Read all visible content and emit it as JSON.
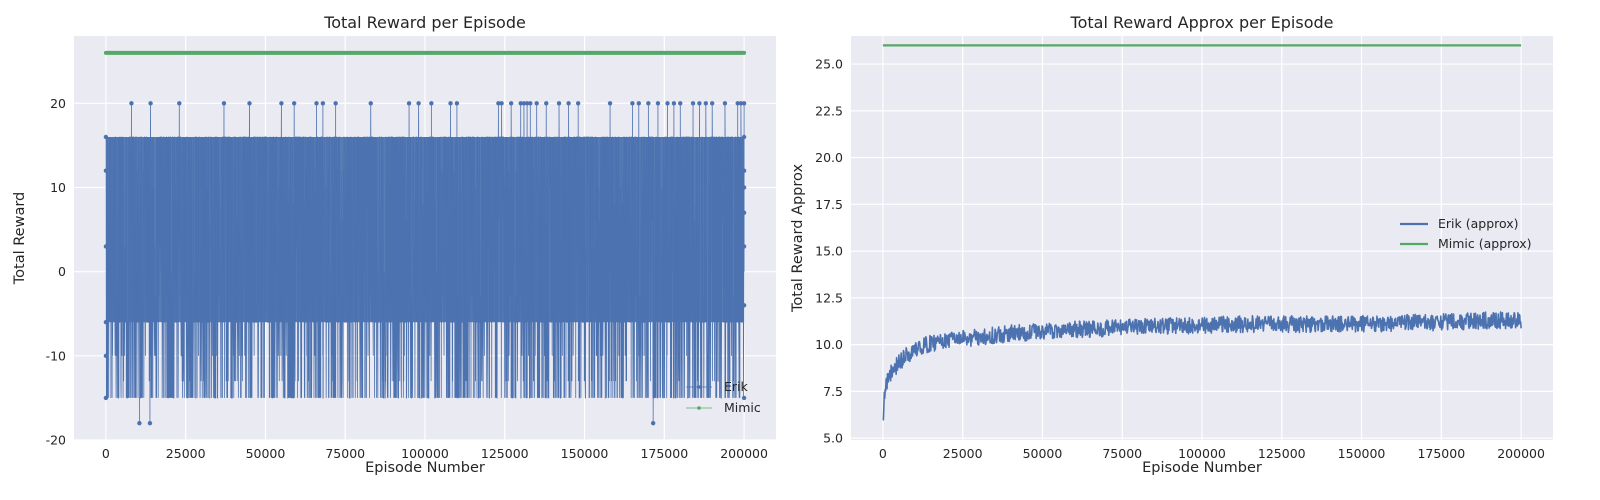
{
  "chart_data": [
    {
      "type": "line",
      "title": "Total Reward per Episode",
      "xlabel": "Episode Number",
      "ylabel": "Total Reward",
      "xlim": [
        -10000,
        210000
      ],
      "ylim": [
        -20,
        28
      ],
      "xticks": [
        0,
        25000,
        50000,
        75000,
        100000,
        125000,
        150000,
        175000,
        200000
      ],
      "yticks": [
        -20,
        -10,
        0,
        10,
        20
      ],
      "grid": true,
      "legend": "lower-right",
      "series": [
        {
          "name": "Erik",
          "color": "#4c72b0",
          "marker": "point",
          "levels": [
            16,
            12,
            10,
            8,
            6,
            3,
            0,
            -3,
            -6,
            -10,
            -13,
            -15
          ],
          "rare_values": [
            {
              "value": 20,
              "x": [
                8000,
                14000,
                23000,
                37000,
                45000,
                55000,
                59000,
                66000,
                68000,
                72000,
                83000,
                95000,
                98000,
                102000,
                108000,
                110000,
                123000,
                124000,
                127000,
                130000,
                131000,
                132000,
                133000,
                135000,
                138000,
                142000,
                145000,
                148000,
                158000,
                165000,
                167000,
                170000,
                173000,
                176000,
                178000,
                180000,
                184000,
                186000,
                188000,
                190000,
                194000,
                198000,
                199000,
                200000
              ]
            },
            {
              "value": -18,
              "x": [
                10500,
                13800,
                171500
              ]
            }
          ],
          "x_range": [
            0,
            200000
          ]
        },
        {
          "name": "Mimic",
          "color": "#55a868",
          "marker": "point",
          "constant_value": 26,
          "x_range": [
            0,
            200000
          ]
        }
      ]
    },
    {
      "type": "line",
      "title": "Total Reward Approx per Episode",
      "xlabel": "Episode Number",
      "ylabel": "Total Reward Approx",
      "xlim": [
        -10000,
        210000
      ],
      "ylim": [
        4.9,
        26.5
      ],
      "xticks": [
        0,
        25000,
        50000,
        75000,
        100000,
        125000,
        150000,
        175000,
        200000
      ],
      "yticks": [
        5.0,
        7.5,
        10.0,
        12.5,
        15.0,
        17.5,
        20.0,
        22.5,
        25.0
      ],
      "grid": true,
      "legend": "center-right",
      "series": [
        {
          "name": "Erik (approx)",
          "color": "#4c72b0",
          "x": [
            0,
            500,
            1500,
            3000,
            5000,
            8000,
            12000,
            16000,
            20000,
            25000,
            30000,
            40000,
            50000,
            60000,
            75000,
            90000,
            100000,
            110000,
            125000,
            140000,
            150000,
            175000,
            190000,
            200000
          ],
          "y": [
            6.0,
            7.5,
            8.2,
            8.6,
            9.0,
            9.5,
            9.9,
            10.1,
            10.2,
            10.3,
            10.4,
            10.6,
            10.7,
            10.8,
            10.9,
            11.0,
            11.0,
            11.1,
            11.1,
            11.1,
            11.1,
            11.2,
            11.3,
            11.3
          ]
        },
        {
          "name": "Mimic (approx)",
          "color": "#55a868",
          "x": [
            0,
            200000
          ],
          "y": [
            26,
            26
          ]
        }
      ]
    }
  ]
}
